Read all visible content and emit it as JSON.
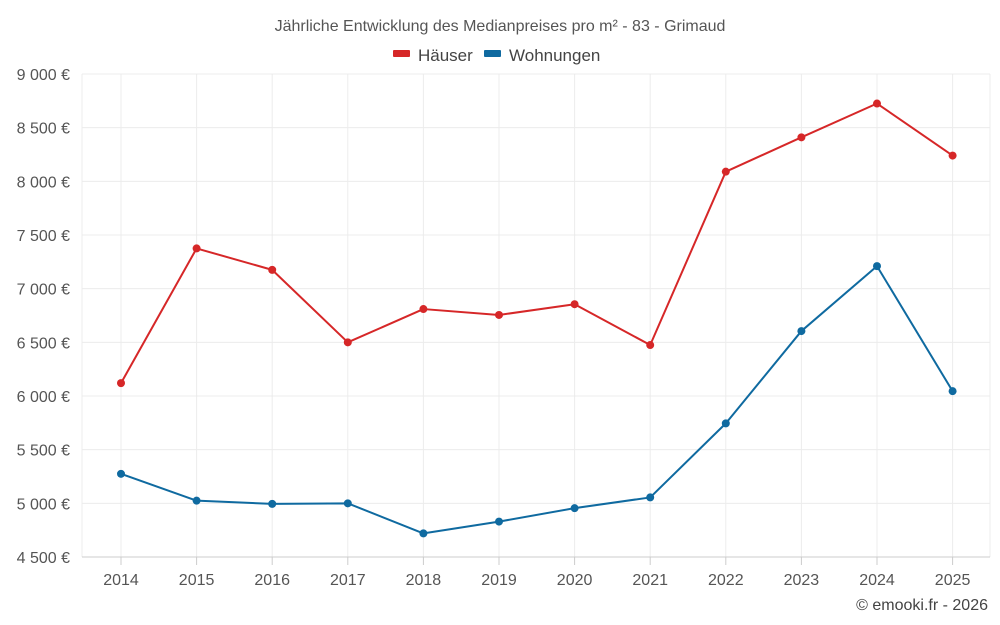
{
  "chart_data": {
    "type": "line",
    "title": "Jährliche Entwicklung des Medianpreises pro m² - 83 - Grimaud",
    "categories": [
      "2014",
      "2015",
      "2016",
      "2017",
      "2018",
      "2019",
      "2020",
      "2021",
      "2022",
      "2023",
      "2024",
      "2025"
    ],
    "series": [
      {
        "name": "Häuser",
        "color": "#d62728",
        "values": [
          6120,
          7375,
          7175,
          6500,
          6810,
          6755,
          6855,
          6475,
          8090,
          8410,
          8725,
          8240
        ]
      },
      {
        "name": "Wohnungen",
        "color": "#0f6aa0",
        "values": [
          5275,
          5025,
          4995,
          5000,
          4720,
          4830,
          4955,
          5055,
          5745,
          6605,
          7210,
          6045
        ]
      }
    ],
    "ylim": [
      4500,
      9000
    ],
    "yticks": [
      4500,
      5000,
      5500,
      6000,
      6500,
      7000,
      7500,
      8000,
      8500,
      9000
    ],
    "ytick_labels": [
      "4 500 €",
      "5 000 €",
      "5 500 €",
      "6 000 €",
      "6 500 €",
      "7 000 €",
      "7 500 €",
      "8 000 €",
      "8 500 €",
      "9 000 €"
    ],
    "xlabel": "",
    "ylabel": "",
    "grid": true,
    "legend_position": "top-center"
  },
  "credit": "© emooki.fr - 2026"
}
